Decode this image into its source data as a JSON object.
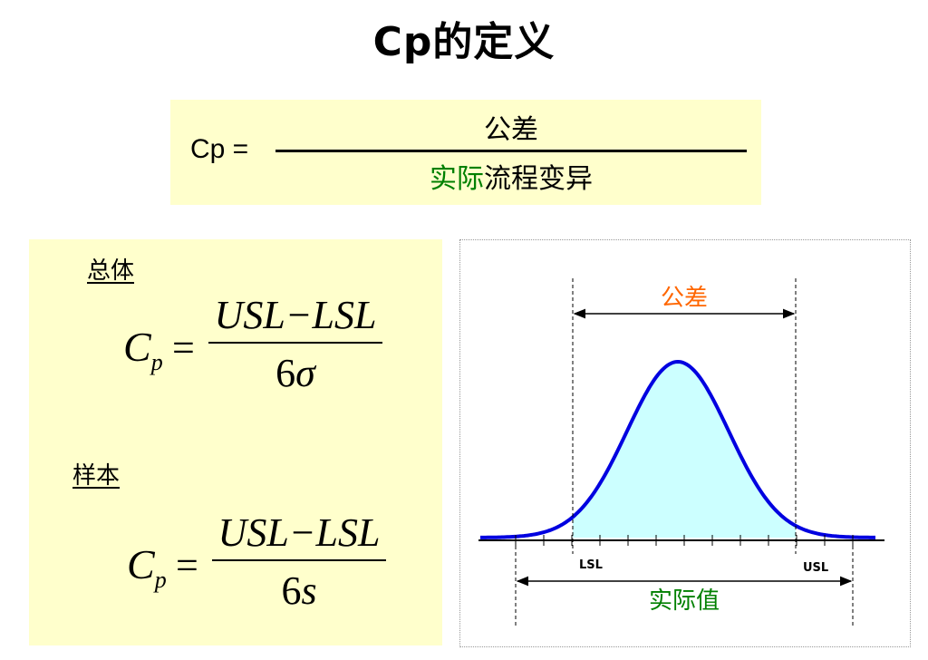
{
  "title": "Cp的定义",
  "definition": {
    "lhs": "Cp =",
    "numerator": "公差",
    "denominator_green": "实际",
    "denominator_rest": "流程变异"
  },
  "population": {
    "label": "总体",
    "lhs": "C",
    "lhs_sub": "p",
    "eq": "=",
    "numerator": "USL−LSL",
    "denominator_num": "6",
    "denominator_sym": "σ"
  },
  "sample": {
    "label": "样本",
    "lhs": "C",
    "lhs_sub": "p",
    "eq": "=",
    "numerator": "USL−LSL",
    "denominator_num": "6",
    "denominator_sym": "s"
  },
  "diagram": {
    "tolerance_label": "公差",
    "lsl_label": "LSL",
    "usl_label": "USL",
    "actual_label": "实际值",
    "colors": {
      "curve": "#0000e0",
      "fill": "#ccffff",
      "tolerance_text": "#ff6600",
      "actual_text": "#008000"
    }
  }
}
